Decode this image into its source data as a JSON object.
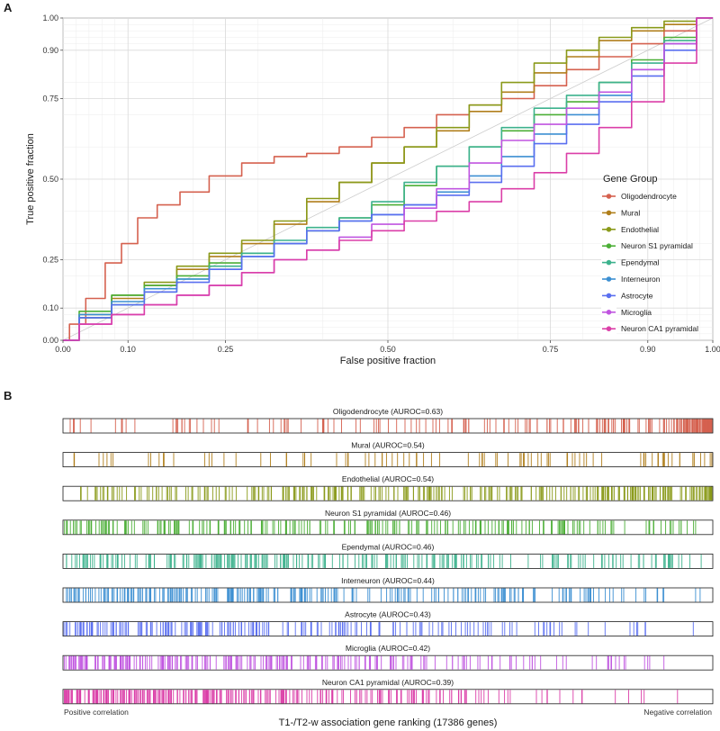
{
  "panels": {
    "a_label": "A",
    "b_label": "B"
  },
  "chart_data": [
    {
      "type": "line",
      "xlabel": "False positive fraction",
      "ylabel": "True positive fraction",
      "xlim": [
        0,
        1
      ],
      "ylim": [
        0,
        1
      ],
      "x_ticks": [
        "0.00",
        "0.10",
        "0.25",
        "0.50",
        "0.75",
        "0.90",
        "1.00"
      ],
      "y_ticks": [
        "0.00",
        "0.10",
        "0.25",
        "0.50",
        "0.75",
        "0.90",
        "1.00"
      ],
      "grid": true,
      "diagonal_reference": true,
      "legend_title": "Gene Group",
      "legend_position": "right",
      "series": [
        {
          "name": "Oligodendrocyte",
          "color": "#d5614f",
          "x": [
            0,
            0.02,
            0.05,
            0.08,
            0.1,
            0.13,
            0.16,
            0.2,
            0.25,
            0.3,
            0.35,
            0.4,
            0.45,
            0.5,
            0.55,
            0.6,
            0.65,
            0.7,
            0.75,
            0.8,
            0.85,
            0.9,
            0.95,
            1
          ],
          "y": [
            0,
            0.05,
            0.13,
            0.24,
            0.3,
            0.38,
            0.42,
            0.46,
            0.51,
            0.55,
            0.57,
            0.58,
            0.6,
            0.63,
            0.66,
            0.7,
            0.73,
            0.75,
            0.79,
            0.84,
            0.88,
            0.92,
            0.96,
            1
          ]
        },
        {
          "name": "Mural",
          "color": "#b07f1c",
          "x": [
            0,
            0.05,
            0.1,
            0.15,
            0.2,
            0.25,
            0.3,
            0.35,
            0.4,
            0.45,
            0.5,
            0.55,
            0.6,
            0.65,
            0.7,
            0.75,
            0.8,
            0.85,
            0.9,
            0.95,
            1
          ],
          "y": [
            0,
            0.07,
            0.13,
            0.17,
            0.22,
            0.26,
            0.3,
            0.36,
            0.43,
            0.49,
            0.55,
            0.6,
            0.65,
            0.71,
            0.77,
            0.83,
            0.88,
            0.93,
            0.96,
            0.98,
            1
          ]
        },
        {
          "name": "Endothelial",
          "color": "#8a9a1a",
          "x": [
            0,
            0.05,
            0.1,
            0.15,
            0.2,
            0.25,
            0.3,
            0.35,
            0.4,
            0.45,
            0.5,
            0.55,
            0.6,
            0.65,
            0.7,
            0.75,
            0.8,
            0.85,
            0.9,
            0.95,
            1
          ],
          "y": [
            0,
            0.08,
            0.14,
            0.18,
            0.23,
            0.27,
            0.31,
            0.37,
            0.44,
            0.49,
            0.55,
            0.6,
            0.66,
            0.73,
            0.8,
            0.86,
            0.9,
            0.94,
            0.97,
            0.99,
            1
          ]
        },
        {
          "name": "Neuron S1 pyramidal",
          "color": "#4caf37",
          "x": [
            0,
            0.05,
            0.1,
            0.15,
            0.2,
            0.25,
            0.3,
            0.35,
            0.4,
            0.45,
            0.5,
            0.55,
            0.6,
            0.65,
            0.7,
            0.75,
            0.8,
            0.85,
            0.9,
            0.95,
            1
          ],
          "y": [
            0,
            0.09,
            0.14,
            0.17,
            0.2,
            0.24,
            0.27,
            0.3,
            0.34,
            0.38,
            0.42,
            0.48,
            0.54,
            0.6,
            0.65,
            0.7,
            0.74,
            0.8,
            0.87,
            0.94,
            1
          ]
        },
        {
          "name": "Ependymal",
          "color": "#3db28d",
          "x": [
            0,
            0.05,
            0.1,
            0.15,
            0.2,
            0.25,
            0.3,
            0.35,
            0.4,
            0.45,
            0.5,
            0.55,
            0.6,
            0.65,
            0.7,
            0.75,
            0.8,
            0.85,
            0.9,
            0.95,
            1
          ],
          "y": [
            0,
            0.07,
            0.11,
            0.15,
            0.19,
            0.23,
            0.27,
            0.31,
            0.35,
            0.38,
            0.43,
            0.49,
            0.54,
            0.6,
            0.66,
            0.72,
            0.76,
            0.8,
            0.86,
            0.93,
            1
          ]
        },
        {
          "name": "Interneuron",
          "color": "#3c8fd2",
          "x": [
            0,
            0.05,
            0.1,
            0.15,
            0.2,
            0.25,
            0.3,
            0.35,
            0.4,
            0.45,
            0.5,
            0.55,
            0.6,
            0.65,
            0.7,
            0.75,
            0.8,
            0.85,
            0.9,
            0.95,
            1
          ],
          "y": [
            0,
            0.08,
            0.12,
            0.16,
            0.19,
            0.22,
            0.26,
            0.3,
            0.34,
            0.37,
            0.39,
            0.42,
            0.46,
            0.51,
            0.57,
            0.64,
            0.7,
            0.76,
            0.84,
            0.92,
            1
          ]
        },
        {
          "name": "Astrocyte",
          "color": "#5a6ff0",
          "x": [
            0,
            0.05,
            0.1,
            0.15,
            0.2,
            0.25,
            0.3,
            0.35,
            0.4,
            0.45,
            0.5,
            0.55,
            0.6,
            0.65,
            0.7,
            0.75,
            0.8,
            0.85,
            0.9,
            0.95,
            1
          ],
          "y": [
            0,
            0.07,
            0.11,
            0.15,
            0.18,
            0.22,
            0.26,
            0.3,
            0.34,
            0.37,
            0.39,
            0.42,
            0.45,
            0.49,
            0.54,
            0.61,
            0.67,
            0.74,
            0.82,
            0.9,
            1
          ]
        },
        {
          "name": "Microglia",
          "color": "#c055e0",
          "x": [
            0,
            0.05,
            0.1,
            0.15,
            0.2,
            0.25,
            0.3,
            0.35,
            0.4,
            0.45,
            0.5,
            0.55,
            0.6,
            0.65,
            0.7,
            0.75,
            0.8,
            0.85,
            0.9,
            0.95,
            1
          ],
          "y": [
            0,
            0.05,
            0.08,
            0.11,
            0.14,
            0.17,
            0.21,
            0.25,
            0.28,
            0.32,
            0.36,
            0.41,
            0.47,
            0.55,
            0.62,
            0.67,
            0.72,
            0.77,
            0.84,
            0.92,
            1
          ]
        },
        {
          "name": "Neuron CA1 pyramidal",
          "color": "#db3fa8",
          "x": [
            0,
            0.05,
            0.1,
            0.15,
            0.2,
            0.25,
            0.3,
            0.35,
            0.4,
            0.45,
            0.5,
            0.55,
            0.6,
            0.65,
            0.7,
            0.75,
            0.8,
            0.85,
            0.9,
            0.95,
            1
          ],
          "y": [
            0,
            0.05,
            0.08,
            0.11,
            0.14,
            0.17,
            0.21,
            0.25,
            0.28,
            0.31,
            0.34,
            0.37,
            0.4,
            0.43,
            0.47,
            0.52,
            0.58,
            0.66,
            0.74,
            0.86,
            1
          ]
        }
      ]
    },
    {
      "type": "barcode",
      "xlabel": "T1-/T2-w association gene ranking (17386 genes)",
      "left_label": "Positive correlation",
      "right_label": "Negative correlation",
      "total_genes": 17386,
      "tracks": [
        {
          "label": "Oligodendrocyte (AUROC=0.63)",
          "color": "#d5614f",
          "auroc": 0.63,
          "count": 260
        },
        {
          "label": "Mural (AUROC=0.54)",
          "color": "#b07f1c",
          "auroc": 0.54,
          "count": 95
        },
        {
          "label": "Endothelial (AUROC=0.54)",
          "color": "#8a9a1a",
          "auroc": 0.54,
          "count": 320
        },
        {
          "label": "Neuron S1 pyramidal (AUROC=0.46)",
          "color": "#4caf37",
          "auroc": 0.46,
          "count": 240
        },
        {
          "label": "Ependymal (AUROC=0.46)",
          "color": "#3db28d",
          "auroc": 0.46,
          "count": 260
        },
        {
          "label": "Interneuron (AUROC=0.44)",
          "color": "#3c8fd2",
          "auroc": 0.44,
          "count": 280
        },
        {
          "label": "Astrocyte (AUROC=0.43)",
          "color": "#5a6ff0",
          "auroc": 0.43,
          "count": 220
        },
        {
          "label": "Microglia (AUROC=0.42)",
          "color": "#c055e0",
          "auroc": 0.42,
          "count": 260
        },
        {
          "label": "Neuron CA1 pyramidal (AUROC=0.39)",
          "color": "#db3fa8",
          "auroc": 0.39,
          "count": 300
        }
      ]
    }
  ]
}
